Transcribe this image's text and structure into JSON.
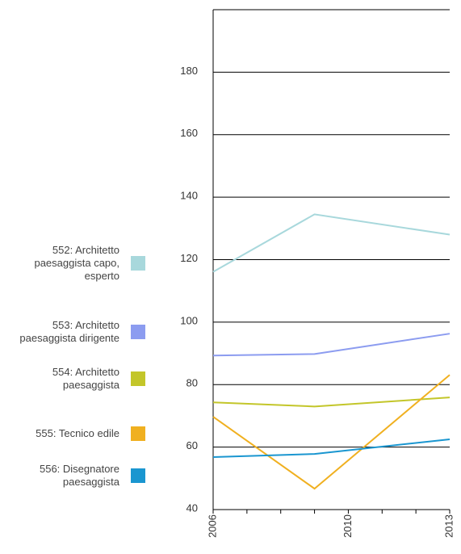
{
  "chart_data": {
    "type": "line",
    "x": [
      2006,
      2009,
      2013
    ],
    "series": [
      {
        "name": "552: Architetto paesaggista capo, esperto",
        "color": "#a8d8dc",
        "values": [
          116.1,
          134.5,
          128
        ]
      },
      {
        "name": "553: Architetto paesaggista dirigente",
        "color": "#8c9cf0",
        "values": [
          89.3,
          89.8,
          96.3
        ]
      },
      {
        "name": "554: Architetto paesaggista",
        "color": "#c3c62a",
        "values": [
          74.3,
          73,
          75.9
        ]
      },
      {
        "name": "555: Tecnico edile",
        "color": "#f0b020",
        "values": [
          69.7,
          46.7,
          83.1
        ]
      },
      {
        "name": "556: Disegnatore paesaggista",
        "color": "#1a96d0",
        "values": [
          56.8,
          57.8,
          62.5
        ]
      }
    ],
    "xlim": [
      2006,
      2013
    ],
    "xticks": [
      2006,
      2010,
      2013
    ],
    "x_minor_ticks": [
      2007,
      2008,
      2009,
      2011,
      2012
    ],
    "ylim": [
      40,
      200
    ],
    "yticks": [
      40,
      60,
      80,
      100,
      120,
      140,
      160,
      180
    ],
    "grid": true,
    "legend": "left"
  }
}
